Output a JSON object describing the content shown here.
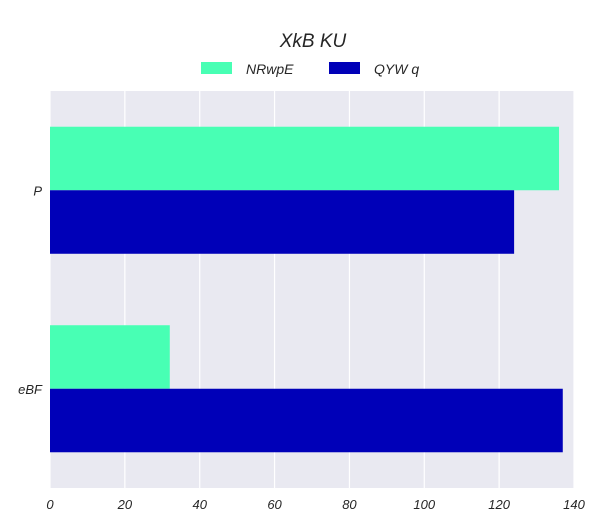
{
  "chart_data": {
    "type": "bar",
    "orientation": "horizontal",
    "title": "XkB KU",
    "categories": [
      "P",
      "eBF"
    ],
    "series": [
      {
        "name": "NRwpE",
        "color": "#48ffb4",
        "values": [
          136,
          32
        ]
      },
      {
        "name": "QYW q",
        "color": "#0000b8",
        "values": [
          124,
          137
        ]
      }
    ],
    "xlim": [
      0,
      140
    ],
    "xticks": [
      "0",
      "20",
      "40",
      "60",
      "80",
      "100",
      "120",
      "140"
    ],
    "grid": true,
    "legend_position": "top-center",
    "background_color": "#e9e9f1"
  }
}
